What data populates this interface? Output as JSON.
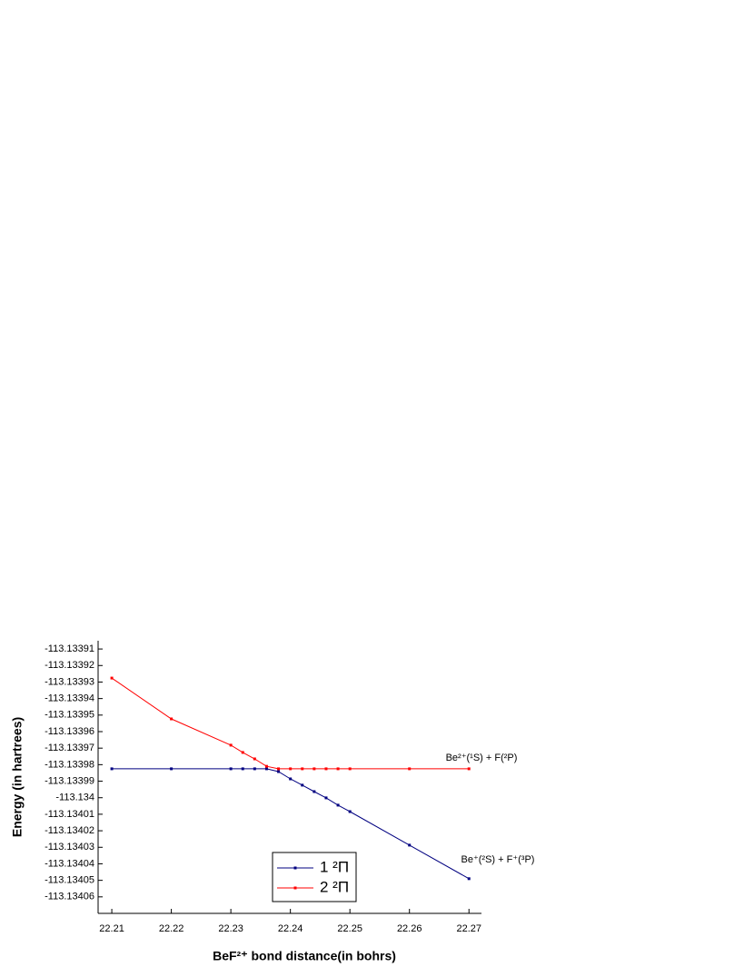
{
  "chart_data": {
    "type": "line",
    "x_label": "BeF²⁺ bond distance(in bohrs)",
    "y_label": "Energy (in hartrees)",
    "annotations": [
      "Be²⁺(¹S) + F(²P)",
      "Be⁺(²S) + F⁺(³P)"
    ],
    "xlim": [
      22.2077,
      22.2721
    ],
    "ylim": [
      -113.133905,
      -113.13407
    ],
    "xticks": [
      22.21,
      22.22,
      22.23,
      22.24,
      22.25,
      22.26,
      22.27
    ],
    "yticks": [
      -113.13391,
      -113.13392,
      -113.13393,
      -113.13394,
      -113.13395,
      -113.13396,
      -113.13397,
      -113.13398,
      -113.13399,
      -113.134,
      -113.13401,
      -113.13402,
      -113.13403,
      -113.13404,
      -113.13405,
      -113.13406
    ],
    "series": [
      {
        "name": "1 ²Π",
        "color": "#000080",
        "x": [
          22.21,
          22.22,
          22.23,
          22.232,
          22.234,
          22.236,
          22.238,
          22.24,
          22.242,
          22.244,
          22.246,
          22.248,
          22.25,
          22.26,
          22.27
        ],
        "values": [
          -113.1339825,
          -113.1339825,
          -113.1339825,
          -113.1339825,
          -113.1339825,
          -113.1339825,
          -113.1339842,
          -113.1339886,
          -113.1339924,
          -113.1339963,
          -113.1340001,
          -113.1340045,
          -113.1340084,
          -113.1340287,
          -113.134049
        ]
      },
      {
        "name": "2 ²Π",
        "color": "#ff0000",
        "x": [
          22.21,
          22.22,
          22.23,
          22.232,
          22.234,
          22.236,
          22.238,
          22.24,
          22.242,
          22.244,
          22.246,
          22.248,
          22.25,
          22.26,
          22.27
        ],
        "values": [
          -113.1339276,
          -113.1339523,
          -113.1339682,
          -113.1339726,
          -113.1339765,
          -113.133981,
          -113.1339825,
          -113.1339825,
          -113.1339825,
          -113.1339825,
          -113.1339825,
          -113.1339825,
          -113.1339825,
          -113.1339825,
          -113.1339825
        ]
      }
    ]
  }
}
